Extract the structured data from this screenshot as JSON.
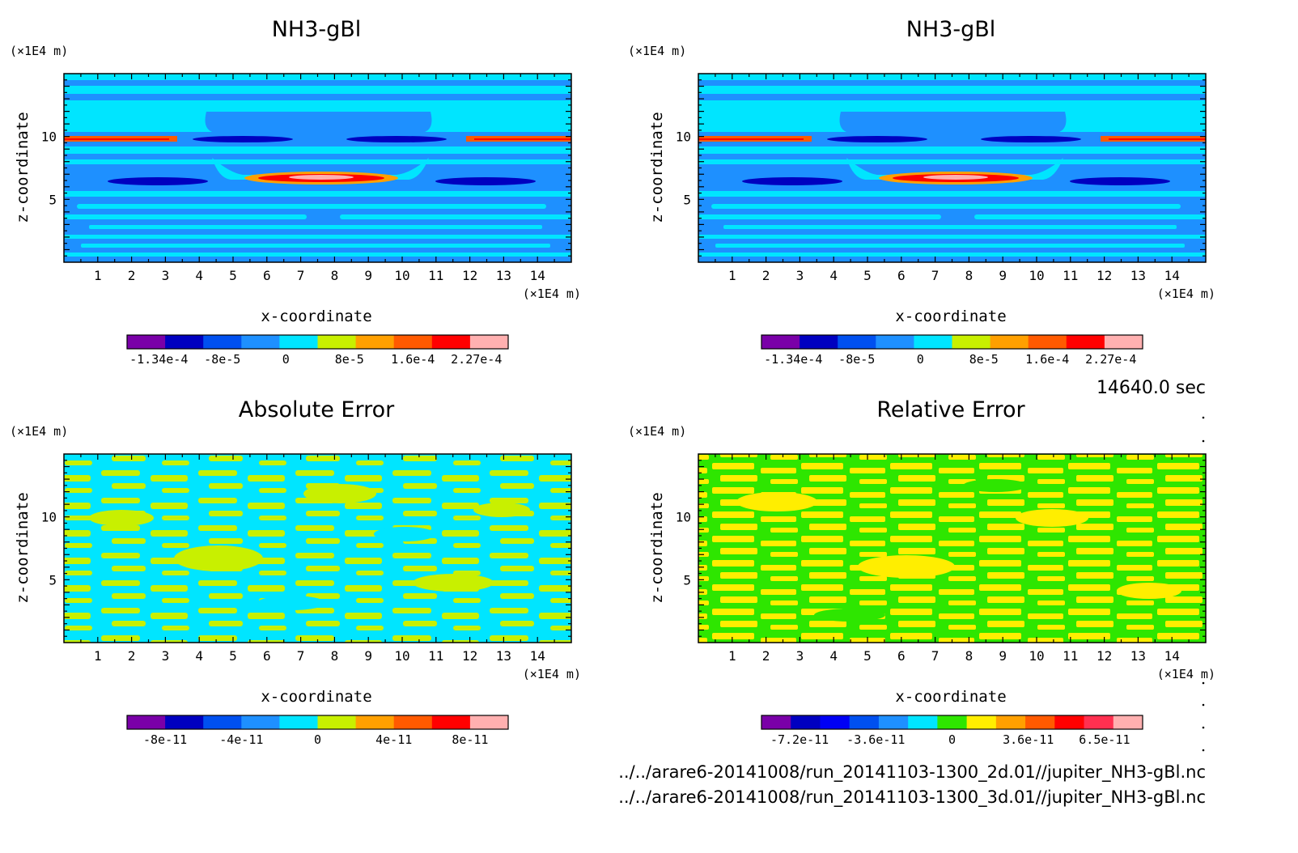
{
  "time_label": "14640.0 sec",
  "file_paths": [
    "../../arare6-20141008/run_20141103-1300_2d.01//jupiter_NH3-gBl.nc",
    "../../arare6-20141008/run_20141103-1300_3d.01//jupiter_NH3-gBl.nc"
  ],
  "chart_data": [
    {
      "type": "heatmap",
      "title": "NH3-gBl",
      "xlabel": "x-coordinate",
      "ylabel": "z-coordinate",
      "x_unit": "(×1E4 m)",
      "z_unit": "(×1E4 m)",
      "xlim": [
        0,
        15
      ],
      "zlim": [
        0,
        15
      ],
      "x_ticks": [
        "1",
        "2",
        "3",
        "4",
        "5",
        "6",
        "7",
        "8",
        "9",
        "10",
        "11",
        "12",
        "13",
        "14"
      ],
      "z_ticks": [
        "5",
        "10"
      ],
      "colorbar": {
        "colors": [
          "#7a00a8",
          "#0000c0",
          "#0050f0",
          "#1e90ff",
          "#00e5ff",
          "#c8f000",
          "#ffa000",
          "#ff5a00",
          "#ff0000",
          "#ffb0b0"
        ],
        "labels": [
          "-1.34e-4",
          "-8e-5",
          "0",
          "8e-5",
          "1.6e-4",
          "2.27e-4"
        ]
      }
    },
    {
      "type": "heatmap",
      "title": "NH3-gBl",
      "xlabel": "x-coordinate",
      "ylabel": "z-coordinate",
      "x_unit": "(×1E4 m)",
      "z_unit": "(×1E4 m)",
      "xlim": [
        0,
        15
      ],
      "zlim": [
        0,
        15
      ],
      "x_ticks": [
        "1",
        "2",
        "3",
        "4",
        "5",
        "6",
        "7",
        "8",
        "9",
        "10",
        "11",
        "12",
        "13",
        "14"
      ],
      "z_ticks": [
        "5",
        "10"
      ],
      "colorbar": {
        "colors": [
          "#7a00a8",
          "#0000c0",
          "#0050f0",
          "#1e90ff",
          "#00e5ff",
          "#c8f000",
          "#ffa000",
          "#ff5a00",
          "#ff0000",
          "#ffb0b0"
        ],
        "labels": [
          "-1.34e-4",
          "-8e-5",
          "0",
          "8e-5",
          "1.6e-4",
          "2.27e-4"
        ]
      }
    },
    {
      "type": "heatmap",
      "title": "Absolute Error",
      "xlabel": "x-coordinate",
      "ylabel": "z-coordinate",
      "x_unit": "(×1E4 m)",
      "z_unit": "(×1E4 m)",
      "xlim": [
        0,
        15
      ],
      "zlim": [
        0,
        15
      ],
      "x_ticks": [
        "1",
        "2",
        "3",
        "4",
        "5",
        "6",
        "7",
        "8",
        "9",
        "10",
        "11",
        "12",
        "13",
        "14"
      ],
      "z_ticks": [
        "5",
        "10"
      ],
      "field_colors": [
        "#00e5ff",
        "#c8f000"
      ],
      "colorbar": {
        "colors": [
          "#7a00a8",
          "#0000c0",
          "#0050f0",
          "#1e90ff",
          "#00e5ff",
          "#c8f000",
          "#ffa000",
          "#ff5a00",
          "#ff0000",
          "#ffb0b0"
        ],
        "labels": [
          "-8e-11",
          "-4e-11",
          "0",
          "4e-11",
          "8e-11"
        ]
      }
    },
    {
      "type": "heatmap",
      "title": "Relative Error",
      "xlabel": "x-coordinate",
      "ylabel": "z-coordinate",
      "x_unit": "(×1E4 m)",
      "z_unit": "(×1E4 m)",
      "xlim": [
        0,
        15
      ],
      "zlim": [
        0,
        15
      ],
      "x_ticks": [
        "1",
        "2",
        "3",
        "4",
        "5",
        "6",
        "7",
        "8",
        "9",
        "10",
        "11",
        "12",
        "13",
        "14"
      ],
      "z_ticks": [
        "5",
        "10"
      ],
      "field_colors": [
        "#2ee600",
        "#ffee00"
      ],
      "colorbar": {
        "colors": [
          "#7a00a8",
          "#0000c0",
          "#0000f5",
          "#0050f0",
          "#1e90ff",
          "#00e5ff",
          "#2ee600",
          "#ffee00",
          "#ffa000",
          "#ff5a00",
          "#ff0000",
          "#ff3050",
          "#ffb0b0"
        ],
        "labels": [
          "-7.2e-11",
          "-3.6e-11",
          "0",
          "3.6e-11",
          "6.5e-11"
        ]
      }
    }
  ]
}
